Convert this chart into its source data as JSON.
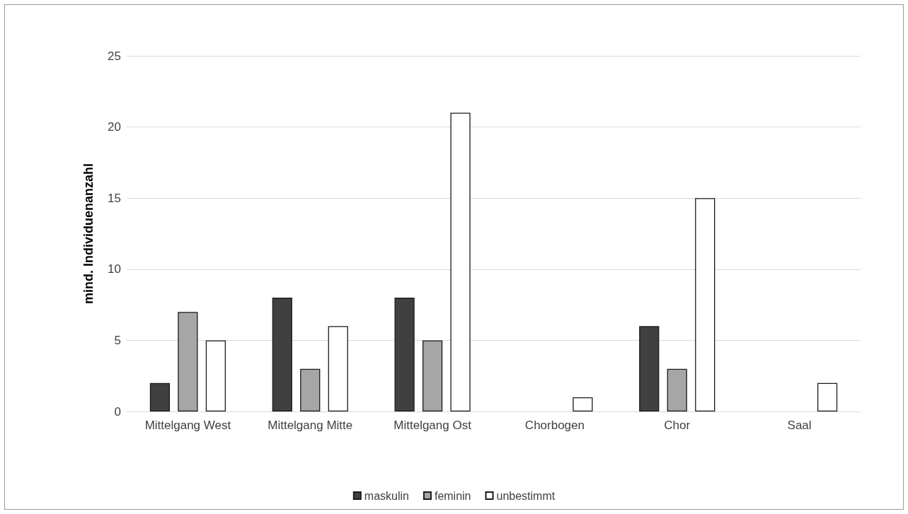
{
  "chart_data": {
    "type": "bar",
    "ylabel": "mind. Individuenanzahl",
    "categories": [
      "Mittelgang West",
      "Mittelgang Mitte",
      "Mittelgang Ost",
      "Chorbogen",
      "Chor",
      "Saal"
    ],
    "series": [
      {
        "name": "maskulin",
        "color": "#404040",
        "values": [
          2,
          8,
          8,
          0,
          6,
          0
        ]
      },
      {
        "name": "feminin",
        "color": "#a6a6a6",
        "values": [
          7,
          3,
          5,
          0,
          3,
          0
        ]
      },
      {
        "name": "unbestimmt",
        "color": "#ffffff",
        "values": [
          5,
          6,
          21,
          1,
          15,
          2
        ]
      }
    ],
    "ylim": [
      0,
      25
    ],
    "yticks": [
      0,
      5,
      10,
      15,
      20,
      25
    ],
    "grid": "y",
    "legend": "bottom"
  }
}
